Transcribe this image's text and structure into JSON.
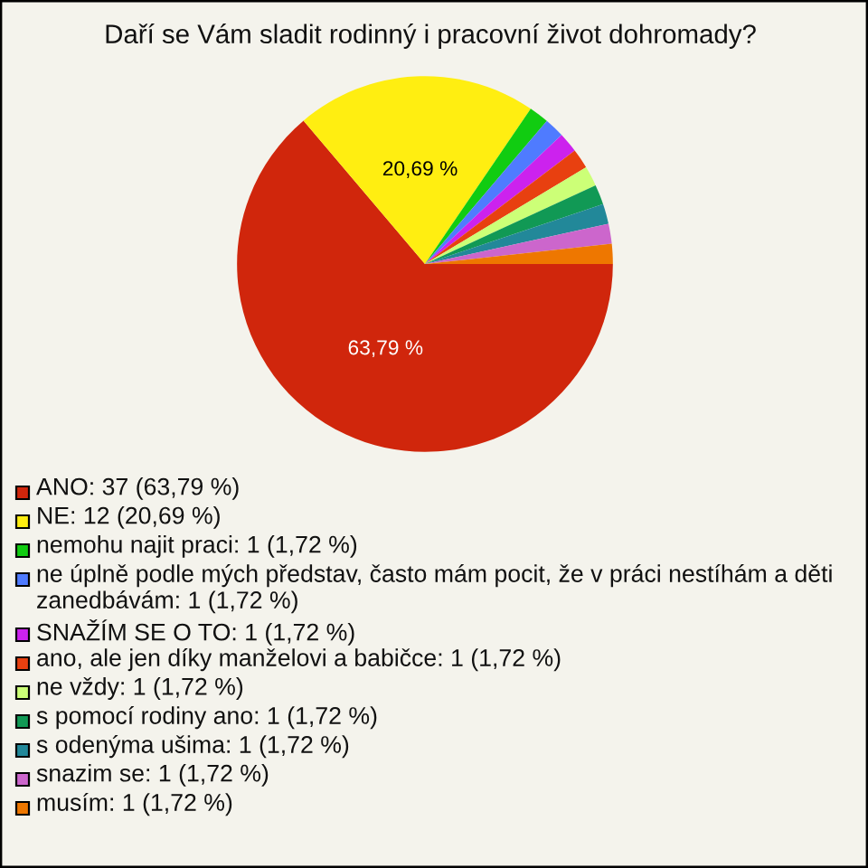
{
  "chart_data": {
    "type": "pie",
    "title": "Daří se Vám sladit rodinný i pracovní život dohromady?",
    "categories": [
      "ANO: 37 (63,79 %)",
      "NE: 12 (20,69 %)",
      "nemohu najit praci: 1 (1,72 %)",
      "ne úplně podle mých představ, často mám pocit, že v práci nestíhám a děti zanedbávám: 1 (1,72 %)",
      "SNAŽÍM SE O TO: 1 (1,72 %)",
      "ano, ale jen díky manželovi a babičce: 1 (1,72 %)",
      "ne vždy: 1 (1,72 %)",
      "s pomocí rodiny ano: 1 (1,72 %)",
      "s odenýma ušima: 1 (1,72 %)",
      "snazim se: 1 (1,72 %)",
      "musím: 1 (1,72 %)"
    ],
    "values": [
      63.79,
      20.69,
      1.72,
      1.72,
      1.72,
      1.72,
      1.72,
      1.72,
      1.72,
      1.72,
      1.72
    ],
    "colors": [
      "#d0260c",
      "#ffee11",
      "#11cc11",
      "#4f7bff",
      "#cc22ee",
      "#e84010",
      "#ccff77",
      "#119955",
      "#228899",
      "#cc66cc",
      "#ee7700"
    ],
    "value_labels": [
      "63,79 %",
      "20,69 %",
      null,
      null,
      null,
      null,
      null,
      null,
      null,
      null,
      null
    ],
    "legend": "bottom"
  }
}
